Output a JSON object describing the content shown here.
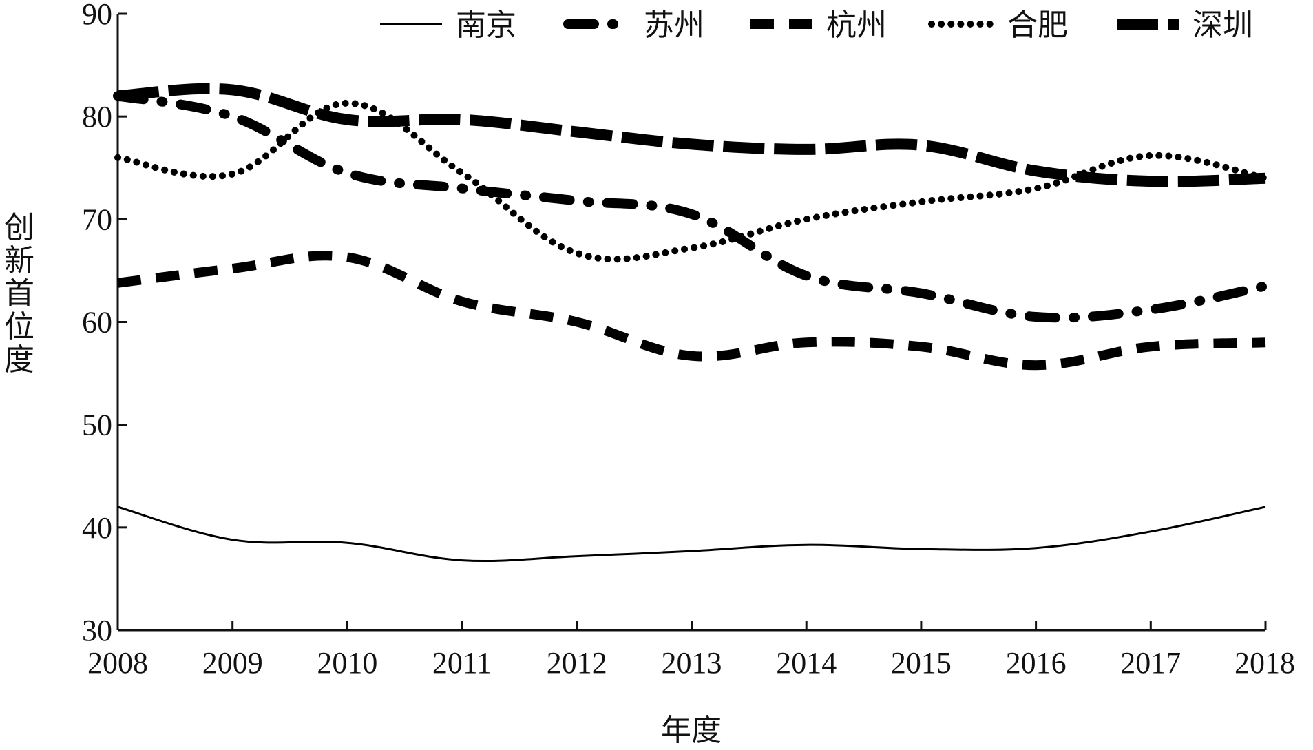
{
  "chart_data": {
    "type": "line",
    "title": "",
    "xlabel": "年度",
    "ylabel": "创新首位度",
    "x": [
      2008,
      2009,
      2010,
      2011,
      2012,
      2013,
      2014,
      2015,
      2016,
      2017,
      2018
    ],
    "x_ticks": [
      "2008",
      "2009",
      "2010",
      "2011",
      "2012",
      "2013",
      "2014",
      "2015",
      "2016",
      "2017",
      "2018"
    ],
    "ylim": [
      30,
      90
    ],
    "y_ticks": [
      "30",
      "40",
      "50",
      "60",
      "70",
      "80",
      "90"
    ],
    "y_tick_values": [
      30,
      40,
      50,
      60,
      70,
      80,
      90
    ],
    "grid": false,
    "legend_position": "top-right",
    "series": [
      {
        "name": "南京",
        "style": "solid",
        "values": [
          42.0,
          38.8,
          38.5,
          36.8,
          37.2,
          37.7,
          38.3,
          37.9,
          38.0,
          39.6,
          42.0
        ]
      },
      {
        "name": "苏州",
        "style": "dashdot",
        "values": [
          82.0,
          80.0,
          74.5,
          73.0,
          71.8,
          70.5,
          64.5,
          62.8,
          60.5,
          61.2,
          63.5
        ]
      },
      {
        "name": "杭州",
        "style": "dashed",
        "values": [
          63.8,
          65.2,
          66.3,
          62.0,
          60.0,
          56.7,
          58.0,
          57.6,
          55.8,
          57.6,
          58.0
        ]
      },
      {
        "name": "合肥",
        "style": "dotted",
        "values": [
          76.0,
          74.4,
          81.3,
          74.5,
          66.7,
          67.2,
          70.0,
          71.7,
          73.0,
          76.2,
          74.0
        ]
      },
      {
        "name": "深圳",
        "style": "longdash",
        "values": [
          82.0,
          82.6,
          79.7,
          79.7,
          78.5,
          77.3,
          76.8,
          77.2,
          74.7,
          73.7,
          74.0
        ]
      }
    ]
  }
}
